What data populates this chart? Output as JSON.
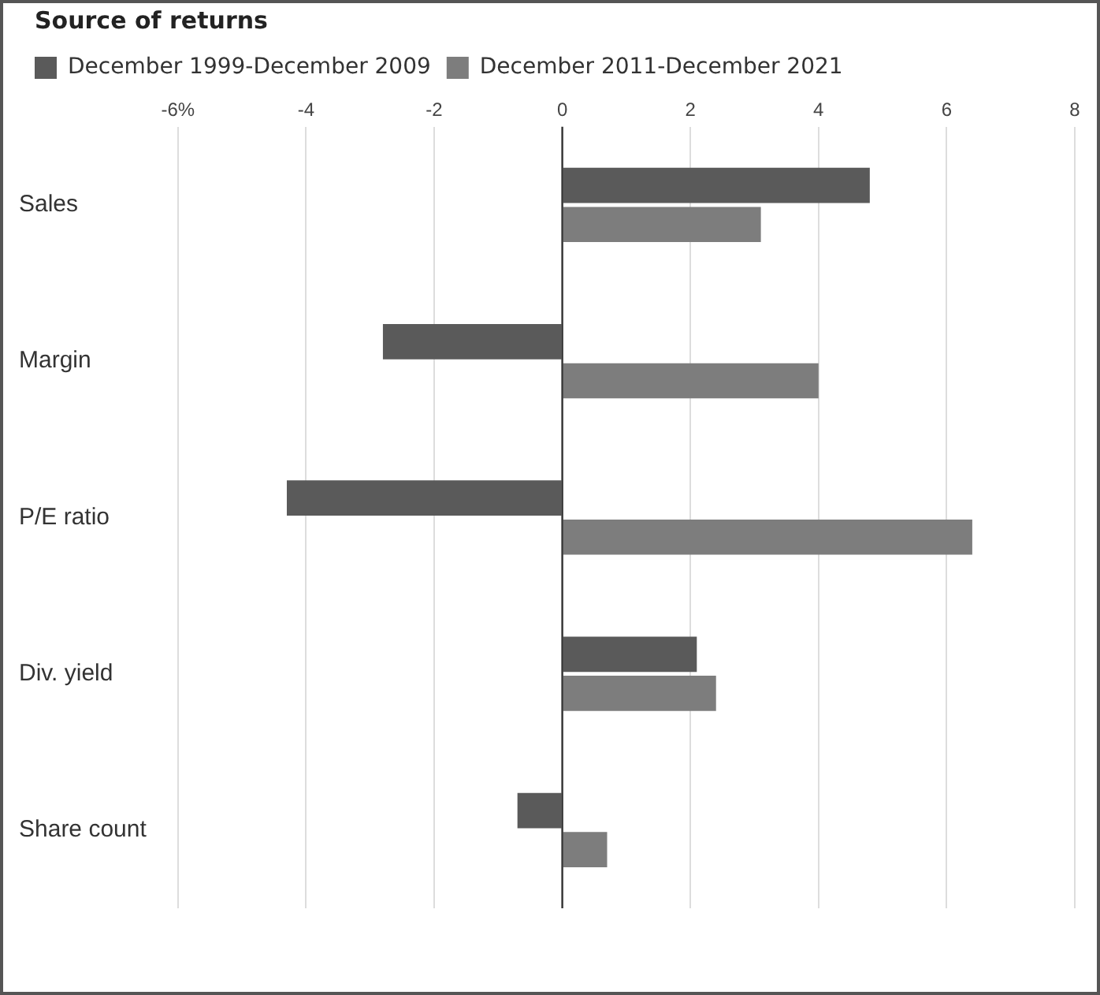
{
  "chart_data": {
    "type": "bar",
    "orientation": "horizontal",
    "title": "Source of returns",
    "categories": [
      "Sales",
      "Margin",
      "P/E ratio",
      "Div. yield",
      "Share count"
    ],
    "series": [
      {
        "name": "December 1999-December 2009",
        "color": "#5a5a5a",
        "values": [
          4.8,
          -2.8,
          -4.3,
          2.1,
          -0.7
        ]
      },
      {
        "name": "December 2011-December 2021",
        "color": "#7d7d7d",
        "values": [
          3.1,
          4.0,
          6.4,
          2.4,
          0.7
        ]
      }
    ],
    "xlim": [
      -6,
      8
    ],
    "xticks": [
      {
        "value": -6,
        "label": "-6%"
      },
      -4,
      -2,
      0,
      2,
      4,
      6,
      8
    ],
    "ref_lines": [
      {
        "axis": "x",
        "value": 0,
        "color": "#333333"
      }
    ],
    "grid": "x",
    "legend": "top left"
  }
}
